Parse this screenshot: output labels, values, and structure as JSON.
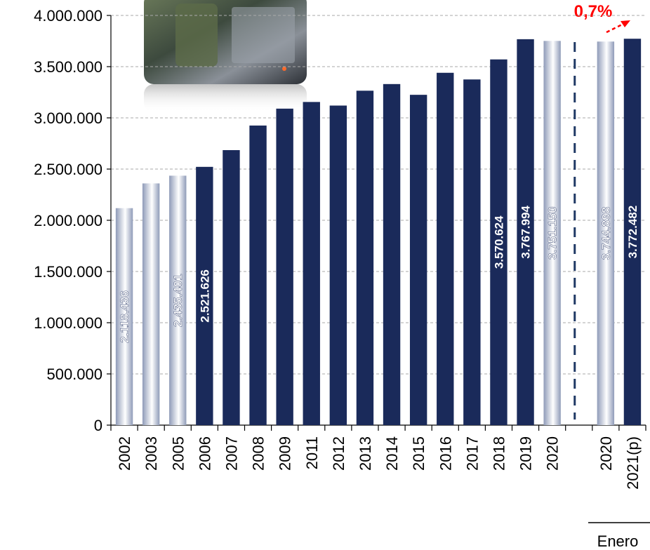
{
  "chart_data": {
    "type": "bar",
    "categories": [
      "2002",
      "2003",
      "2005",
      "2006",
      "2007",
      "2008",
      "2009",
      "2011",
      "2012",
      "2013",
      "2014",
      "2015",
      "2016",
      "2017",
      "2018",
      "2019",
      "2020",
      null,
      "2020",
      "2021(p)"
    ],
    "values": [
      2118436,
      2360000,
      2435401,
      2521626,
      2685000,
      2925000,
      3090000,
      3155000,
      3120000,
      3265000,
      3330000,
      3225000,
      3440000,
      3375000,
      3570624,
      3767994,
      3751150,
      null,
      3744898,
      3772482
    ],
    "value_labels": [
      "2.118.436",
      null,
      "2.435.401",
      "2.521.626",
      null,
      null,
      null,
      null,
      null,
      null,
      null,
      null,
      null,
      null,
      "3.570.624",
      "3.767.994",
      "3.751.150",
      null,
      "3.744.898",
      "3.772.482"
    ],
    "colors": [
      "#8f9bb8",
      "#8f9bb8",
      "#8f9bb8",
      "#1a2a5a",
      "#1a2a5a",
      "#1a2a5a",
      "#1a2a5a",
      "#1a2a5a",
      "#1a2a5a",
      "#1a2a5a",
      "#1a2a5a",
      "#1a2a5a",
      "#1a2a5a",
      "#1a2a5a",
      "#1a2a5a",
      "#1a2a5a",
      "#8f9bb8",
      null,
      "#8f9bb8",
      "#1a2a5a"
    ],
    "ylim": [
      0,
      4000000
    ],
    "yticks": [
      0,
      {
        "value": 500000,
        "label": "500.000"
      },
      {
        "value": 1000000,
        "label": "1.000.000"
      },
      {
        "value": 1500000,
        "label": "1.500.000"
      },
      {
        "value": 2000000,
        "label": "2.000.000"
      },
      {
        "value": 2500000,
        "label": "2.500.000"
      },
      {
        "value": 3000000,
        "label": "3.000.000"
      },
      {
        "value": 3500000,
        "label": "3.500.000"
      },
      {
        "value": 4000000,
        "label": "4.000.000"
      }
    ],
    "grid": true,
    "group_label": "Enero",
    "annotation": "0,7%"
  }
}
